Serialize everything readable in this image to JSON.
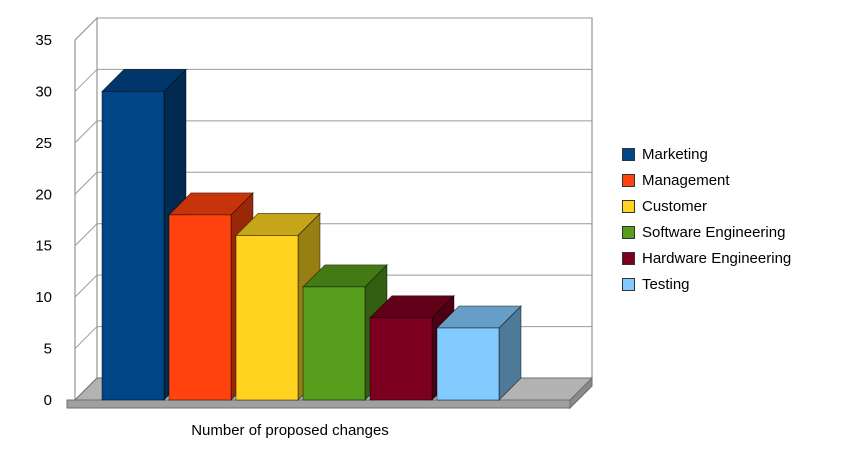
{
  "figure": {
    "background": "#ffffff",
    "wall_color": "#ffffff",
    "floor_color": "#b3b3b3",
    "gridline_color": "#9a9a9a",
    "text_color": "#000000"
  },
  "chart_data": {
    "type": "bar",
    "style": "3d",
    "categories": [
      "Marketing",
      "Management",
      "Customer",
      "Software Engineering",
      "Hardware Engineering",
      "Testing"
    ],
    "values": [
      30,
      18,
      16,
      11,
      8,
      7
    ],
    "colors": [
      "#004586",
      "#ff420e",
      "#ffd320",
      "#579d1c",
      "#7e0021",
      "#83caff"
    ],
    "title": "",
    "xlabel": "Number of proposed changes",
    "ylabel": "",
    "ylim": [
      0,
      35
    ],
    "yticks": [
      0,
      5,
      10,
      15,
      20,
      25,
      30,
      35
    ],
    "grid": true,
    "legend_position": "right"
  }
}
